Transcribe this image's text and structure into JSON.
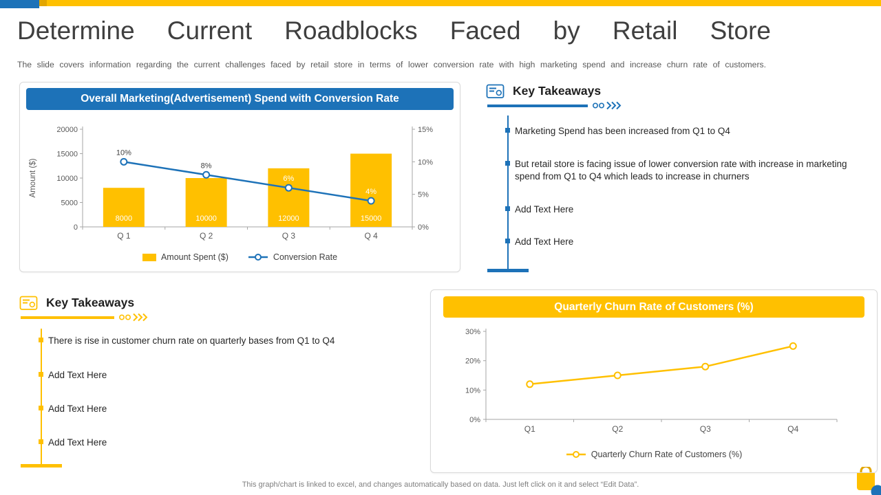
{
  "slide": {
    "title": "Determine Current Roadblocks Faced by Retail Store",
    "subtitle": "The slide covers information regarding the current challenges faced by retail store in terms of lower conversion rate with high marketing spend and increase churn rate of customers.",
    "footer": "This graph/chart is linked to excel, and changes automatically based on data. Just left click on it and select “Edit Data”."
  },
  "colors": {
    "blue": "#1d72b8",
    "yellow": "#ffc000",
    "gold": "#e3a600",
    "title_text": "#3f3f3f",
    "body_text": "#262626",
    "muted_text": "#595959",
    "footer_text": "#7f7f7f",
    "axis": "#a6a6a6",
    "card_border": "#d9d9d9"
  },
  "takeaways_right": {
    "title": "Key Takeaways",
    "icon": "money-icon",
    "items": [
      "Marketing Spend has been increased from Q1 to Q4",
      "But retail store is facing issue of lower conversion rate with increase in marketing spend from Q1 to Q4 which leads to increase in churners",
      "Add Text Here",
      "Add Text Here"
    ]
  },
  "takeaways_left": {
    "title": "Key Takeaways",
    "icon": "money-icon",
    "items": [
      "There is rise in customer churn rate on quarterly bases from Q1 to Q4",
      "Add Text Here",
      "Add Text Here",
      "Add Text Here"
    ]
  },
  "chart_data": [
    {
      "type": "combo_bar_line",
      "title": "Overall Marketing(Advertisement) Spend with Conversion Rate",
      "categories": [
        "Q 1",
        "Q 2",
        "Q 3",
        "Q 4"
      ],
      "series": [
        {
          "name": "Amount Spent ($)",
          "type": "bar",
          "axis": "left",
          "values": [
            8000,
            10000,
            12000,
            15000
          ],
          "color": "#ffc000"
        },
        {
          "name": "Conversion Rate",
          "type": "line",
          "axis": "right",
          "values": [
            10,
            8,
            6,
            4
          ],
          "unit": "%",
          "color": "#1d72b8"
        }
      ],
      "bar_labels": [
        "8000",
        "10000",
        "12000",
        "15000"
      ],
      "line_labels": [
        "10%",
        "8%",
        "6%",
        "4%"
      ],
      "left_axis": {
        "label": "Amount ($)",
        "min": 0,
        "max": 20000,
        "step": 5000
      },
      "right_axis": {
        "min": 0,
        "max": 15,
        "step": 5,
        "suffix": "%"
      },
      "grid": false,
      "legend_position": "bottom"
    },
    {
      "type": "line",
      "title": "Quarterly Churn Rate of Customers (%)",
      "categories": [
        "Q1",
        "Q2",
        "Q3",
        "Q4"
      ],
      "series": [
        {
          "name": "Quarterly Churn Rate of Customers (%)",
          "values": [
            12,
            15,
            18,
            25
          ],
          "color": "#ffc000"
        }
      ],
      "y_axis": {
        "min": 0,
        "max": 30,
        "step": 10,
        "suffix": "%"
      },
      "grid": false,
      "legend_position": "bottom"
    }
  ]
}
